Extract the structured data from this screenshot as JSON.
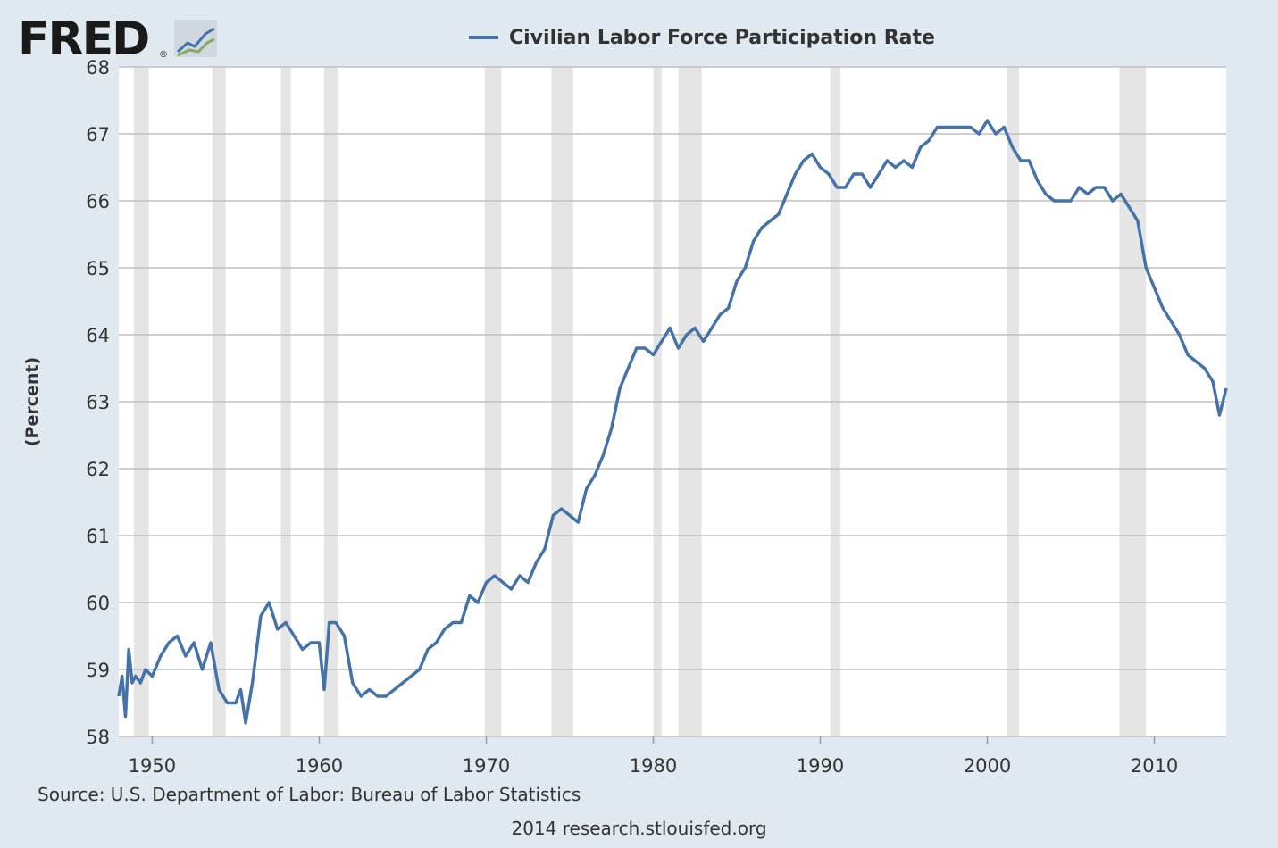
{
  "logo": {
    "text": "FRED",
    "registered": "®"
  },
  "source": "Source: U.S. Department of Labor: Bureau of Labor Statistics",
  "footer": "2014 research.stlouisfed.org",
  "colors": {
    "background": "#e1e9f0",
    "plot": "#ffffff",
    "series": "#4572a7",
    "recession": "#e5e5e5",
    "grid": "#c0c0c0"
  },
  "chart_data": {
    "type": "line",
    "title": "",
    "ylabel": "(Percent)",
    "xlabel": "",
    "xlim": [
      1948.0,
      2014.3
    ],
    "ylim": [
      58,
      68
    ],
    "grid": true,
    "legend_placement": "top",
    "x_ticks": [
      1950,
      1960,
      1970,
      1980,
      1990,
      2000,
      2010
    ],
    "x_tick_labels": [
      "1950",
      "1960",
      "1970",
      "1980",
      "1990",
      "2000",
      "2010"
    ],
    "y_ticks": [
      58,
      59,
      60,
      61,
      62,
      63,
      64,
      65,
      66,
      67,
      68
    ],
    "y_tick_labels": [
      "58",
      "59",
      "60",
      "61",
      "62",
      "63",
      "64",
      "65",
      "66",
      "67",
      "68"
    ],
    "recessions": [
      [
        1948.9,
        1949.8
      ],
      [
        1953.6,
        1954.4
      ],
      [
        1957.7,
        1958.3
      ],
      [
        1960.3,
        1961.1
      ],
      [
        1969.9,
        1970.9
      ],
      [
        1973.9,
        1975.2
      ],
      [
        1980.0,
        1980.5
      ],
      [
        1981.5,
        1982.9
      ],
      [
        1990.6,
        1991.2
      ],
      [
        2001.2,
        2001.9
      ],
      [
        2007.9,
        2009.5
      ]
    ],
    "series": [
      {
        "name": "Civilian Labor Force Participation Rate",
        "x": [
          1948.0,
          1948.2,
          1948.4,
          1948.6,
          1948.8,
          1949.0,
          1949.3,
          1949.6,
          1950.0,
          1950.5,
          1951.0,
          1951.5,
          1952.0,
          1952.5,
          1953.0,
          1953.5,
          1954.0,
          1954.5,
          1955.0,
          1955.3,
          1955.6,
          1956.0,
          1956.5,
          1957.0,
          1957.5,
          1958.0,
          1958.5,
          1959.0,
          1959.5,
          1960.0,
          1960.3,
          1960.6,
          1961.0,
          1961.5,
          1962.0,
          1962.5,
          1963.0,
          1963.5,
          1964.0,
          1964.5,
          1965.0,
          1965.5,
          1966.0,
          1966.5,
          1967.0,
          1967.5,
          1968.0,
          1968.5,
          1969.0,
          1969.5,
          1970.0,
          1970.5,
          1971.0,
          1971.5,
          1972.0,
          1972.5,
          1973.0,
          1973.5,
          1974.0,
          1974.5,
          1975.0,
          1975.5,
          1976.0,
          1976.5,
          1977.0,
          1977.5,
          1978.0,
          1978.5,
          1979.0,
          1979.5,
          1980.0,
          1980.5,
          1981.0,
          1981.5,
          1982.0,
          1982.5,
          1983.0,
          1983.5,
          1984.0,
          1984.5,
          1985.0,
          1985.5,
          1986.0,
          1986.5,
          1987.0,
          1987.5,
          1988.0,
          1988.5,
          1989.0,
          1989.5,
          1990.0,
          1990.5,
          1991.0,
          1991.5,
          1992.0,
          1992.5,
          1993.0,
          1993.5,
          1994.0,
          1994.5,
          1995.0,
          1995.5,
          1996.0,
          1996.5,
          1997.0,
          1997.5,
          1998.0,
          1998.5,
          1999.0,
          1999.5,
          2000.0,
          2000.5,
          2001.0,
          2001.5,
          2002.0,
          2002.5,
          2003.0,
          2003.5,
          2004.0,
          2004.5,
          2005.0,
          2005.5,
          2006.0,
          2006.5,
          2007.0,
          2007.5,
          2008.0,
          2008.5,
          2009.0,
          2009.5,
          2010.0,
          2010.5,
          2011.0,
          2011.5,
          2012.0,
          2012.5,
          2013.0,
          2013.5,
          2013.9,
          2014.1,
          2014.3
        ],
        "values": [
          58.6,
          58.9,
          58.3,
          59.3,
          58.8,
          58.9,
          58.8,
          59.0,
          58.9,
          59.2,
          59.4,
          59.5,
          59.2,
          59.4,
          59.0,
          59.4,
          58.7,
          58.5,
          58.5,
          58.7,
          58.2,
          58.8,
          59.8,
          60.0,
          59.6,
          59.7,
          59.5,
          59.3,
          59.4,
          59.4,
          58.7,
          59.7,
          59.7,
          59.5,
          58.8,
          58.6,
          58.7,
          58.6,
          58.6,
          58.7,
          58.8,
          58.9,
          59.0,
          59.3,
          59.4,
          59.6,
          59.7,
          59.7,
          60.1,
          60.0,
          60.3,
          60.4,
          60.3,
          60.2,
          60.4,
          60.3,
          60.6,
          60.8,
          61.3,
          61.4,
          61.3,
          61.2,
          61.7,
          61.9,
          62.2,
          62.6,
          63.2,
          63.5,
          63.8,
          63.8,
          63.7,
          63.9,
          64.1,
          63.8,
          64.0,
          64.1,
          63.9,
          64.1,
          64.3,
          64.4,
          64.8,
          65.0,
          65.4,
          65.6,
          65.7,
          65.8,
          66.1,
          66.4,
          66.6,
          66.7,
          66.5,
          66.4,
          66.2,
          66.2,
          66.4,
          66.4,
          66.2,
          66.4,
          66.6,
          66.5,
          66.6,
          66.5,
          66.8,
          66.9,
          67.1,
          67.1,
          67.1,
          67.1,
          67.1,
          67.0,
          67.2,
          67.0,
          67.1,
          66.8,
          66.6,
          66.6,
          66.3,
          66.1,
          66.0,
          66.0,
          66.0,
          66.2,
          66.1,
          66.2,
          66.2,
          66.0,
          66.1,
          65.9,
          65.7,
          65.0,
          64.7,
          64.4,
          64.2,
          64.0,
          63.7,
          63.6,
          63.5,
          63.3,
          62.8,
          63.0,
          63.2
        ]
      }
    ]
  },
  "legend": {
    "label": "Civilian Labor Force Participation Rate"
  }
}
